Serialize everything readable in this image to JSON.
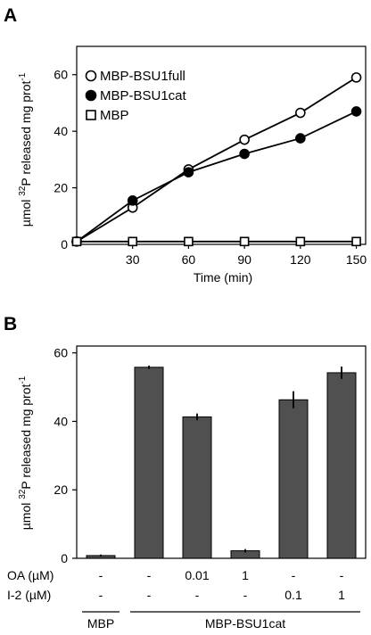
{
  "panels": {
    "a_letter": "A",
    "b_letter": "B"
  },
  "chart_data": [
    {
      "type": "line",
      "panel": "A",
      "xlabel": "Time (min)",
      "ylabel_parts": [
        "µmol ",
        "32",
        "P released mg prot",
        "-1"
      ],
      "x": [
        0,
        30,
        60,
        90,
        120,
        150
      ],
      "xticks": [
        30,
        60,
        90,
        120,
        150
      ],
      "xlim": [
        0,
        155
      ],
      "yticks": [
        0,
        20,
        40,
        60
      ],
      "ylim": [
        0,
        70
      ],
      "grid": false,
      "legend_position": "top-left",
      "series": [
        {
          "name": "MBP-BSU1full",
          "marker": "open-circle",
          "values": [
            1,
            13,
            26.5,
            37,
            46.5,
            59
          ]
        },
        {
          "name": "MBP-BSU1cat",
          "marker": "filled-circle",
          "values": [
            1,
            15.5,
            25.5,
            32,
            37.5,
            47
          ]
        },
        {
          "name": "MBP",
          "marker": "open-square",
          "values": [
            1,
            1,
            1,
            1,
            1,
            1
          ]
        }
      ]
    },
    {
      "type": "bar",
      "panel": "B",
      "ylabel_parts": [
        "µmol ",
        "32",
        "P released mg prot",
        "-1"
      ],
      "values": [
        0.8,
        55.8,
        41.3,
        2.2,
        46.3,
        54.2
      ],
      "errors": [
        0.3,
        0.5,
        1.0,
        0.5,
        2.5,
        1.8
      ],
      "yticks": [
        0,
        20,
        40,
        60
      ],
      "ylim": [
        0,
        62
      ],
      "bar_color": "#505050",
      "grid": false,
      "row_labels": [
        "OA (µM)",
        "I-2 (µM)"
      ],
      "rows": [
        [
          "-",
          "-",
          "0.01",
          "1",
          "-",
          "-"
        ],
        [
          "-",
          "-",
          "-",
          "-",
          "0.1",
          "1"
        ]
      ],
      "groups": [
        {
          "label": "MBP",
          "from": 0,
          "to": 0
        },
        {
          "label": "MBP-BSU1cat",
          "from": 1,
          "to": 5
        }
      ]
    }
  ]
}
